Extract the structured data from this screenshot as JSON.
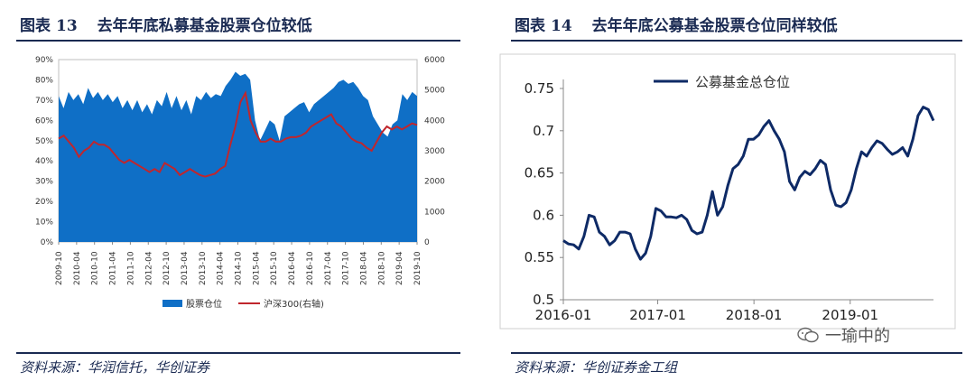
{
  "left": {
    "fig_label": "图表",
    "fig_num": "13",
    "title": "去年年底私募基金股票仓位较低",
    "source": "资料来源：华润信托，华创证券"
  },
  "right": {
    "fig_label": "图表",
    "fig_num": "14",
    "title": "去年年底公募基金股票仓位同样较低",
    "source": "资料来源：华创证券金工组"
  },
  "watermark": "一瑜中的",
  "colors": {
    "area": "#0f6fc6",
    "line_red": "#c0262d",
    "line_navy": "#0e2a66"
  },
  "chart_data": [
    {
      "type": "area",
      "title": "",
      "xlabel": "",
      "ylabel": "",
      "x_ticks": [
        "2009-10",
        "2010-04",
        "2010-10",
        "2011-04",
        "2011-10",
        "2012-04",
        "2012-10",
        "2013-04",
        "2013-10",
        "2014-04",
        "2014-10",
        "2015-04",
        "2015-10",
        "2016-04",
        "2016-10",
        "2017-04",
        "2017-10",
        "2018-04",
        "2018-10",
        "2019-04",
        "2019-10"
      ],
      "y_ticks_left": [
        "0%",
        "10%",
        "20%",
        "30%",
        "40%",
        "50%",
        "60%",
        "70%",
        "80%",
        "90%"
      ],
      "y_ticks_right": [
        "0",
        "1000",
        "2000",
        "3000",
        "4000",
        "5000",
        "6000"
      ],
      "ylim_left": [
        0,
        90
      ],
      "ylim_right": [
        0,
        6000
      ],
      "legend_position": "bottom",
      "series": [
        {
          "name": "股票仓位",
          "axis": "left",
          "kind": "area",
          "values": [
            72,
            66,
            74,
            70,
            73,
            68,
            76,
            71,
            74,
            70,
            73,
            69,
            72,
            66,
            70,
            65,
            70,
            64,
            68,
            63,
            70,
            67,
            74,
            66,
            72,
            65,
            70,
            63,
            72,
            70,
            74,
            71,
            73,
            72,
            77,
            80,
            84,
            82,
            83,
            80,
            60,
            50,
            55,
            60,
            58,
            50,
            62,
            64,
            66,
            68,
            69,
            64,
            68,
            70,
            72,
            74,
            76,
            79,
            80,
            78,
            79,
            76,
            72,
            70,
            62,
            58,
            54,
            52,
            58,
            60,
            73,
            70,
            74,
            72
          ]
        },
        {
          "name": "沪深300(右轴)",
          "axis": "right",
          "kind": "line",
          "values": [
            3400,
            3500,
            3300,
            3100,
            2800,
            3000,
            3100,
            3300,
            3200,
            3200,
            3100,
            2900,
            2700,
            2600,
            2700,
            2600,
            2500,
            2400,
            2300,
            2400,
            2300,
            2600,
            2500,
            2400,
            2200,
            2300,
            2400,
            2300,
            2200,
            2150,
            2200,
            2250,
            2400,
            2500,
            3200,
            3800,
            4600,
            4900,
            4000,
            3600,
            3300,
            3300,
            3400,
            3300,
            3300,
            3400,
            3450,
            3450,
            3500,
            3600,
            3800,
            3900,
            4000,
            4100,
            4200,
            3900,
            3800,
            3600,
            3400,
            3300,
            3250,
            3100,
            3000,
            3300,
            3600,
            3800,
            3700,
            3800,
            3700,
            3800,
            3900,
            3850
          ]
        }
      ]
    },
    {
      "type": "line",
      "title": "",
      "xlabel": "",
      "ylabel": "",
      "x_ticks": [
        "2016-01",
        "2017-01",
        "2018-01",
        "2019-01"
      ],
      "y_ticks": [
        "0.5",
        "0.55",
        "0.6",
        "0.65",
        "0.7",
        "0.75"
      ],
      "ylim": [
        0.5,
        0.75
      ],
      "legend_position": "top-left",
      "series": [
        {
          "name": "公募基金总仓位",
          "values": [
            0.57,
            0.566,
            0.565,
            0.56,
            0.575,
            0.6,
            0.598,
            0.58,
            0.575,
            0.565,
            0.57,
            0.58,
            0.58,
            0.578,
            0.56,
            0.548,
            0.555,
            0.575,
            0.608,
            0.605,
            0.598,
            0.598,
            0.597,
            0.6,
            0.595,
            0.582,
            0.578,
            0.58,
            0.6,
            0.628,
            0.6,
            0.61,
            0.635,
            0.655,
            0.66,
            0.67,
            0.69,
            0.69,
            0.695,
            0.705,
            0.712,
            0.7,
            0.69,
            0.675,
            0.64,
            0.63,
            0.645,
            0.652,
            0.648,
            0.655,
            0.665,
            0.66,
            0.63,
            0.612,
            0.61,
            0.615,
            0.63,
            0.655,
            0.675,
            0.67,
            0.68,
            0.688,
            0.685,
            0.678,
            0.672,
            0.675,
            0.68,
            0.67,
            0.69,
            0.718,
            0.728,
            0.725,
            0.712
          ]
        }
      ]
    }
  ]
}
